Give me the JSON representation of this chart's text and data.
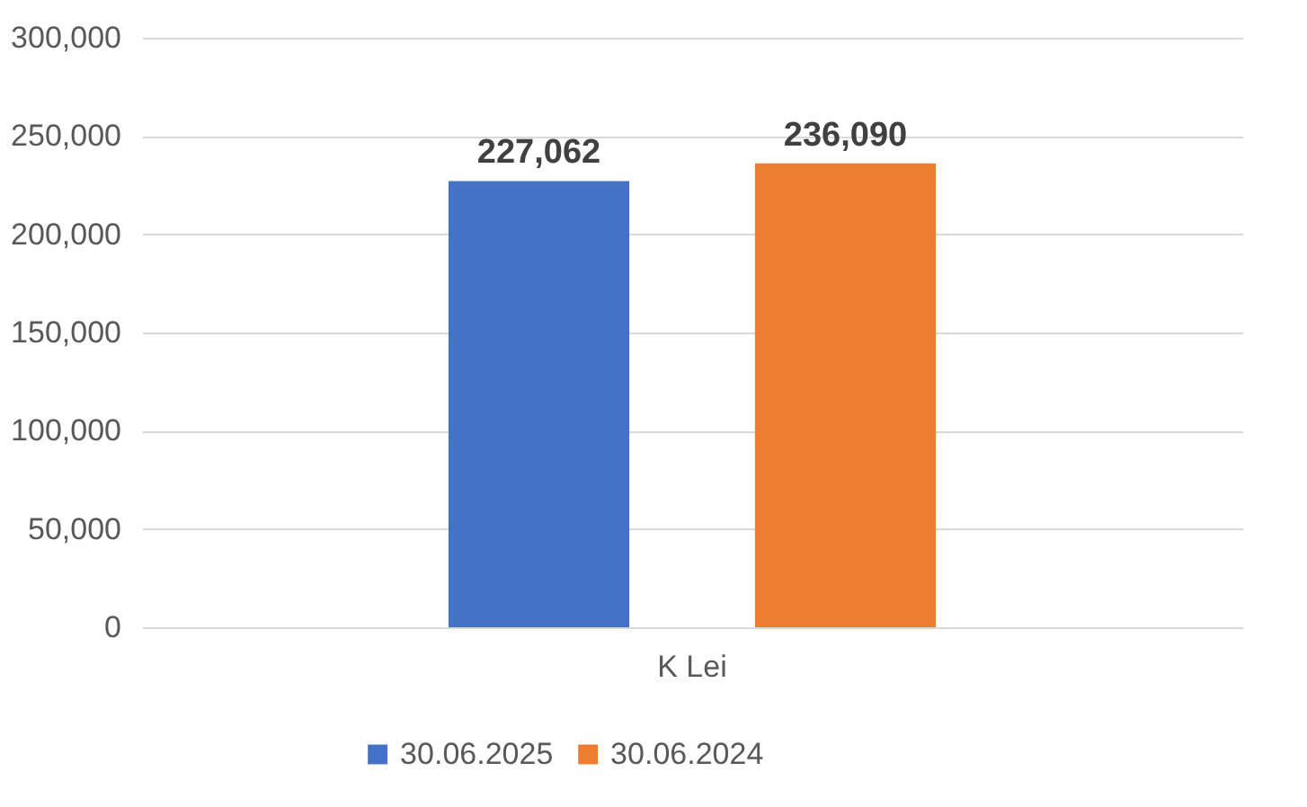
{
  "chart_data": {
    "type": "bar",
    "categories": [
      "K Lei"
    ],
    "series": [
      {
        "name": "30.06.2025",
        "color": "#4472c4",
        "values": [
          227062
        ],
        "value_labels": [
          "227,062"
        ]
      },
      {
        "name": "30.06.2024",
        "color": "#ed7d31",
        "values": [
          236090
        ],
        "value_labels": [
          "236,090"
        ]
      }
    ],
    "ylim": [
      0,
      300000
    ],
    "yticks": [
      0,
      {
        "value": 50000,
        "label": "50,000"
      },
      {
        "value": 100000,
        "label": "100,000"
      },
      {
        "value": 150000,
        "label": "150,000"
      },
      {
        "value": 200000,
        "label": "200,000"
      },
      {
        "value": 250000,
        "label": "250,000"
      },
      {
        "value": 300000,
        "label": "300,000"
      }
    ],
    "grid": "y",
    "legend": "bottom"
  }
}
